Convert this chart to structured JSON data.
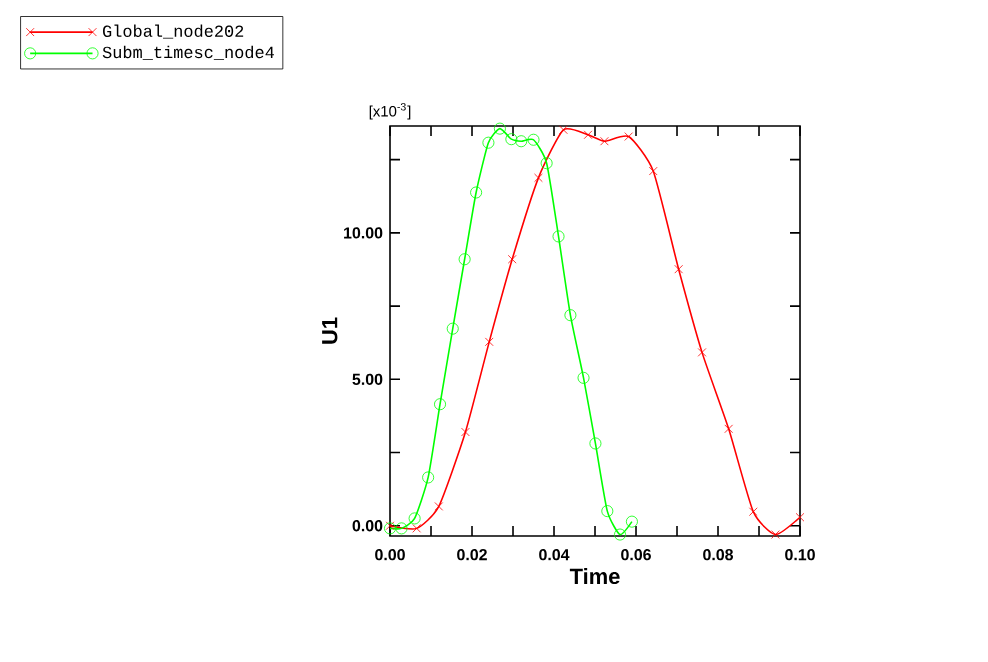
{
  "chart_data": {
    "type": "line",
    "xlabel": "Time",
    "ylabel": "U1",
    "annotations": [
      "[x10$^{-3}$]"
    ],
    "xlim": [
      0,
      0.1
    ],
    "ylim": [
      -0.35,
      13.65
    ],
    "xticks": [
      {
        "value": 0,
        "label": "0.00"
      },
      {
        "value": 0.01,
        "label": null
      },
      {
        "value": 0.02,
        "label": "0.02"
      },
      {
        "value": 0.03,
        "label": null
      },
      {
        "value": 0.04,
        "label": "0.04"
      },
      {
        "value": 0.05,
        "label": null
      },
      {
        "value": 0.06,
        "label": "0.06"
      },
      {
        "value": 0.07,
        "label": null
      },
      {
        "value": 0.08,
        "label": "0.08"
      },
      {
        "value": 0.09,
        "label": null
      },
      {
        "value": 0.1,
        "label": "0.10"
      }
    ],
    "yticks": [
      {
        "value": 0,
        "label": "0.00"
      },
      {
        "value": 2.5,
        "label": null
      },
      {
        "value": 5,
        "label": "5.00"
      },
      {
        "value": 7.5,
        "label": null
      },
      {
        "value": 10,
        "label": "10.00"
      },
      {
        "value": 12.5,
        "label": null
      }
    ],
    "legend": "top left",
    "grid": false,
    "series": [
      {
        "name": "Global_node202",
        "color": "#ff0000",
        "marker": "cross",
        "x": [
          0,
          0.0065,
          0.0119,
          0.0184,
          0.0242,
          0.0298,
          0.0362,
          0.0423,
          0.0483,
          0.0523,
          0.0582,
          0.0642,
          0.0704,
          0.0761,
          0.0826,
          0.0886,
          0.094,
          0.1
        ],
        "values": [
          0,
          -0.09,
          0.66,
          3.2,
          6.28,
          9.1,
          11.88,
          13.52,
          13.35,
          13.13,
          13.29,
          12.11,
          8.76,
          5.92,
          3.31,
          0.48,
          -0.3,
          0.29
        ]
      },
      {
        "name": "Subm_timesc_node4",
        "color": "#00ff00",
        "marker": "circle",
        "x": [
          0,
          0.0028,
          0.006,
          0.0093,
          0.0122,
          0.0153,
          0.0182,
          0.021,
          0.024,
          0.0268,
          0.0296,
          0.032,
          0.035,
          0.0382,
          0.0411,
          0.044,
          0.0472,
          0.0501,
          0.053,
          0.0561,
          0.059
        ],
        "values": [
          -0.09,
          -0.09,
          0.25,
          1.65,
          4.15,
          6.73,
          9.1,
          11.38,
          13.08,
          13.56,
          13.2,
          13.13,
          13.18,
          12.38,
          9.88,
          7.19,
          5.05,
          2.81,
          0.5,
          -0.3,
          0.14
        ]
      }
    ]
  }
}
